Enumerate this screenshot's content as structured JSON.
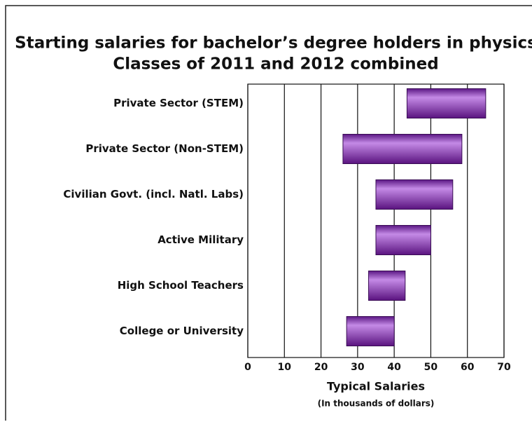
{
  "chart_data": {
    "type": "floating-bar",
    "title": "Starting salaries for bachelor’s degree holders in physics",
    "subtitle": "Classes of 2011 and 2012 combined",
    "categories": [
      "Private Sector (STEM)",
      "Private Sector (Non-STEM)",
      "Civilian Govt. (incl. Natl. Labs)",
      "Active Military",
      "High School Teachers",
      "College or University"
    ],
    "values": [
      [
        43.5,
        65
      ],
      [
        26,
        58.5
      ],
      [
        35,
        56
      ],
      [
        35,
        50
      ],
      [
        33,
        43
      ],
      [
        27,
        40
      ]
    ],
    "color": "#7a2aa0",
    "xlim": [
      0,
      70
    ],
    "xticks": [
      0,
      10,
      20,
      30,
      40,
      50,
      60,
      70
    ],
    "grid": true,
    "xlabel": "Typical Salaries",
    "xlabel_sub": "(In thousands of dollars)"
  }
}
